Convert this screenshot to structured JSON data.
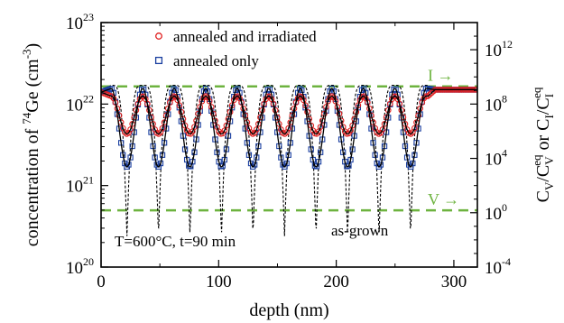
{
  "chart_data": {
    "type": "scatter",
    "xlabel": "depth (nm)",
    "xlim": [
      0,
      320
    ],
    "x_ticks": [
      0,
      100,
      200,
      300
    ],
    "left_axis": {
      "label_parts": [
        "concentration of ",
        "74",
        "Ge (cm",
        "-3",
        ")"
      ],
      "scale": "log",
      "ylim": [
        1e+20,
        1e+23
      ],
      "ticks": [
        {
          "value": 1e+20,
          "base": "10",
          "exp": "20"
        },
        {
          "value": 1e+21,
          "base": "10",
          "exp": "21"
        },
        {
          "value": 1e+22,
          "base": "10",
          "exp": "22"
        },
        {
          "value": 1e+23,
          "base": "10",
          "exp": "23"
        }
      ]
    },
    "right_axis": {
      "label_parts": [
        "C",
        "V",
        "/C",
        "V",
        "eq",
        " or C",
        "I",
        "/C",
        "I",
        "eq"
      ],
      "scale": "log",
      "ylim": [
        0.0001,
        100000000000000.0
      ],
      "ticks": [
        {
          "value": 0.0001,
          "base": "10",
          "exp": "-4"
        },
        {
          "value": 1.0,
          "base": "10",
          "exp": "0"
        },
        {
          "value": 10000.0,
          "base": "10",
          "exp": "4"
        },
        {
          "value": 100000000.0,
          "base": "10",
          "exp": "8"
        },
        {
          "value": 1000000000000.0,
          "base": "10",
          "exp": "12"
        }
      ]
    },
    "legend": {
      "placement": "top-center",
      "entries": [
        {
          "label": "annealed and irradiated",
          "marker": "circle",
          "color": "#e02020"
        },
        {
          "label": "annealed only",
          "marker": "square",
          "color": "#1a3fa0"
        }
      ]
    },
    "reference_lines": [
      {
        "label": "I",
        "right_axis_value": 2000000000.0,
        "color": "#6db33f"
      },
      {
        "label": "V",
        "right_axis_value": 1.5,
        "color": "#6db33f"
      }
    ],
    "annotations": {
      "conditions": "T=600°C, t=90 min",
      "as_grown_label": "as-grown",
      "arrow_glyph": "→"
    },
    "profile": {
      "period_nm": 26.8,
      "first_minimum_nm": 22,
      "number_of_minima": 10,
      "plateau_start_nm": 278,
      "surface_value": 1.4e+22,
      "deep_plateau_value": 1.5e+22
    },
    "series": [
      {
        "name": "as-grown",
        "style": "dashed",
        "color": "#000000",
        "peak": 1.7e+22,
        "minimum": 2.4e+20
      },
      {
        "name": "annealed only",
        "style": "markers",
        "color": "#1a3fa0",
        "peak": 1.55e+22,
        "minimum": 1.7e+21
      },
      {
        "name": "annealed and irradiated",
        "style": "markers",
        "color": "#e02020",
        "peak": 1.25e+22,
        "minimum": 4.3e+21
      }
    ],
    "fit_curves": {
      "color": "#000000",
      "style": "solid"
    },
    "colors": {
      "reference": "#6db33f",
      "axes": "#000000"
    }
  }
}
